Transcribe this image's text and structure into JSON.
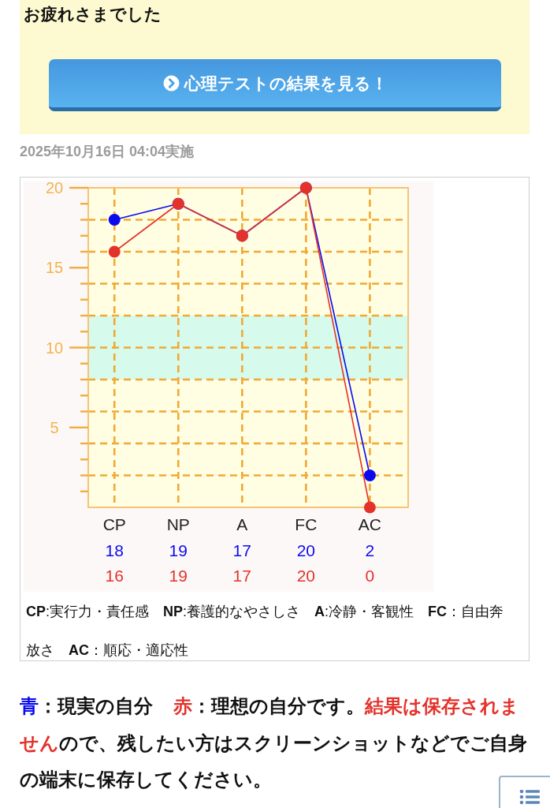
{
  "chart_data": {
    "type": "line",
    "categories": [
      "CP",
      "NP",
      "A",
      "FC",
      "AC"
    ],
    "series": [
      {
        "color": "#0a0aee",
        "values": [
          18,
          19,
          17,
          20,
          2
        ]
      },
      {
        "color": "#e4322b",
        "values": [
          16,
          19,
          17,
          20,
          0
        ]
      }
    ],
    "ylim": [
      0,
      20
    ],
    "yticks": [
      {
        "value": 1,
        "label": null
      },
      {
        "value": 2,
        "label": null
      },
      {
        "value": 3,
        "label": null
      },
      {
        "value": 4,
        "label": null
      },
      5,
      {
        "value": 6,
        "label": null
      },
      {
        "value": 7,
        "label": null
      },
      {
        "value": 8,
        "label": null
      },
      {
        "value": 9,
        "label": null
      },
      10,
      {
        "value": 11,
        "label": null
      },
      {
        "value": 12,
        "label": null
      },
      {
        "value": 13,
        "label": null
      },
      {
        "value": 14,
        "label": null
      },
      15,
      {
        "value": 16,
        "label": null
      },
      {
        "value": 17,
        "label": null
      },
      {
        "value": 18,
        "label": null
      },
      {
        "value": 19,
        "label": null
      },
      20
    ],
    "grid": true,
    "marker": "circle",
    "data_labels": true,
    "bands": [
      {
        "axis": "y",
        "from": 8,
        "to": 12,
        "color": "#d6faec"
      }
    ],
    "annotations": [
      "お疲れさまでした",
      "心理テストの結果を見る！",
      "2025年10月16日 04:04実施",
      "**CP**:実行力・責任感　**NP**:養護的なやさしさ　**A**:冷静・客観性　**FC**：自由奔放さ　**AC**：順応・適応性",
      "青",
      "：現実の自分",
      "赤",
      "：理想の自分です。",
      "結果は保存されま",
      "せん",
      "ので、残したい方はスクリーンショットなどでご自身",
      "の端末に保存してください。"
    ]
  }
}
